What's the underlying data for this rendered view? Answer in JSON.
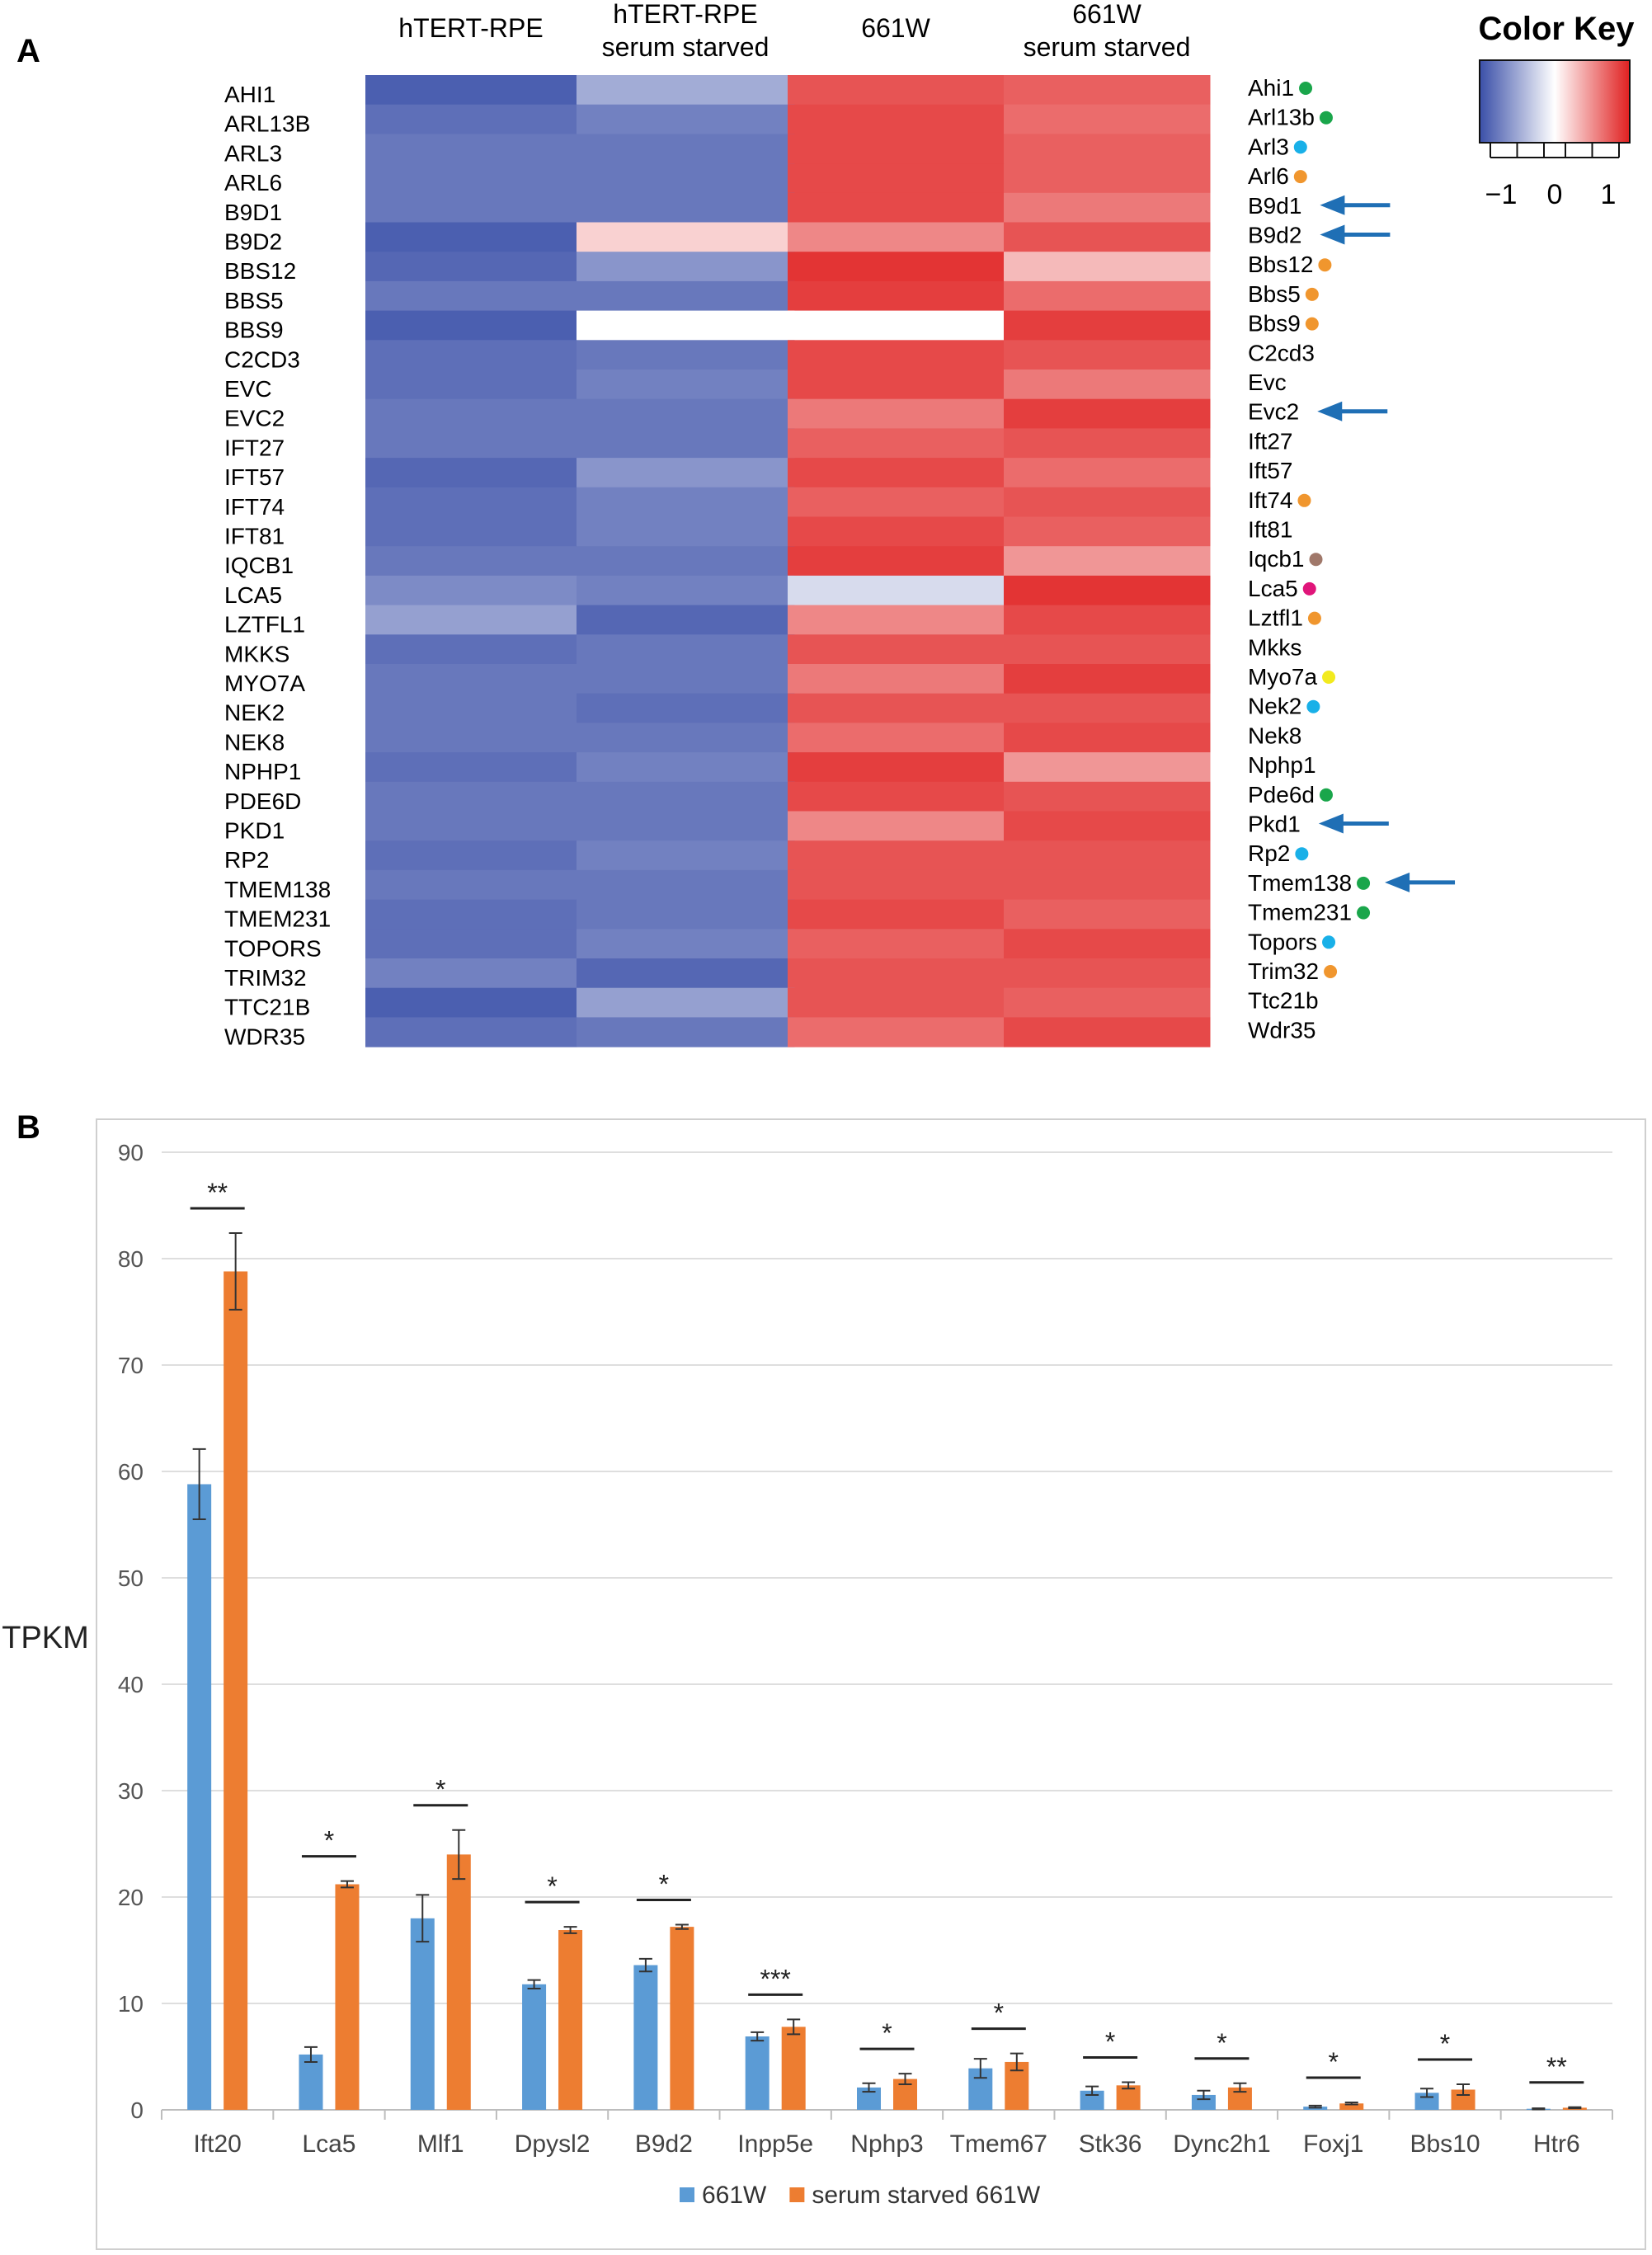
{
  "panel_labels": [
    "A",
    "B"
  ],
  "chart_data": [
    {
      "type": "heatmap",
      "title": "",
      "columns": [
        "hTERT-RPE",
        "hTERT-RPE serum starved",
        "661W",
        "661W serum starved"
      ],
      "column_label_lines": [
        [
          "hTERT-RPE"
        ],
        [
          "hTERT-RPE",
          "serum starved"
        ],
        [
          "661W"
        ],
        [
          "661W",
          "serum starved"
        ]
      ],
      "rows_human": [
        "AHI1",
        "ARL13B",
        "ARL3",
        "ARL6",
        "B9D1",
        "B9D2",
        "BBS12",
        "BBS5",
        "BBS9",
        "C2CD3",
        "EVC",
        "EVC2",
        "IFT27",
        "IFT57",
        "IFT74",
        "IFT81",
        "IQCB1",
        "LCA5",
        "LZTFL1",
        "MKKS",
        "MYO7A",
        "NEK2",
        "NEK8",
        "NPHP1",
        "PDE6D",
        "PKD1",
        "RP2",
        "TMEM138",
        "TMEM231",
        "TOPORS",
        "TRIM32",
        "TTC21B",
        "WDR35"
      ],
      "rows_mouse": [
        "Ahi1",
        "Arl13b",
        "Arl3",
        "Arl6",
        "B9d1",
        "B9d2",
        "Bbs12",
        "Bbs5",
        "Bbs9",
        "C2cd3",
        "Evc",
        "Evc2",
        "Ift27",
        "Ift57",
        "Ift74",
        "Ift81",
        "Iqcb1",
        "Lca5",
        "Lztfl1",
        "Mkks",
        "Myo7a",
        "Nek2",
        "Nek8",
        "Nphp1",
        "Pde6d",
        "Pkd1",
        "Rp2",
        "Tmem138",
        "Tmem231",
        "Topors",
        "Trim32",
        "Ttc21b",
        "Wdr35"
      ],
      "values": [
        [
          -1.2,
          -0.4,
          0.9,
          0.8
        ],
        [
          -1.0,
          -0.8,
          1.0,
          0.7
        ],
        [
          -0.9,
          -0.9,
          1.0,
          0.8
        ],
        [
          -0.9,
          -0.9,
          1.0,
          0.8
        ],
        [
          -0.9,
          -0.9,
          1.0,
          0.6
        ],
        [
          -1.2,
          0.1,
          0.5,
          0.9
        ],
        [
          -1.1,
          -0.6,
          1.2,
          0.2
        ],
        [
          -0.9,
          -0.9,
          1.1,
          0.7
        ],
        [
          -1.2,
          0.0,
          0.0,
          1.1
        ],
        [
          -1.0,
          -0.9,
          1.0,
          0.9
        ],
        [
          -1.0,
          -0.8,
          1.0,
          0.6
        ],
        [
          -0.9,
          -0.9,
          0.6,
          1.1
        ],
        [
          -0.9,
          -0.9,
          0.8,
          0.9
        ],
        [
          -1.1,
          -0.6,
          1.0,
          0.7
        ],
        [
          -1.0,
          -0.8,
          0.8,
          0.9
        ],
        [
          -1.0,
          -0.8,
          1.0,
          0.8
        ],
        [
          -0.9,
          -0.9,
          1.1,
          0.4
        ],
        [
          -0.7,
          -0.8,
          -0.1,
          1.2
        ],
        [
          -0.5,
          -1.1,
          0.5,
          1.0
        ],
        [
          -1.0,
          -0.9,
          0.9,
          0.9
        ],
        [
          -0.9,
          -0.9,
          0.6,
          1.1
        ],
        [
          -0.9,
          -1.0,
          0.9,
          0.9
        ],
        [
          -0.9,
          -0.9,
          0.7,
          1.0
        ],
        [
          -1.0,
          -0.8,
          1.1,
          0.4
        ],
        [
          -0.9,
          -0.9,
          1.0,
          0.9
        ],
        [
          -0.9,
          -0.9,
          0.5,
          1.0
        ],
        [
          -1.0,
          -0.8,
          0.9,
          0.9
        ],
        [
          -0.9,
          -0.9,
          0.9,
          0.9
        ],
        [
          -1.0,
          -0.9,
          1.0,
          0.8
        ],
        [
          -1.0,
          -0.8,
          0.8,
          1.0
        ],
        [
          -0.8,
          -1.1,
          0.9,
          0.9
        ],
        [
          -1.2,
          -0.5,
          0.9,
          0.8
        ],
        [
          -1.0,
          -0.9,
          0.7,
          1.0
        ]
      ],
      "dot_colors": [
        "#1aa64b",
        "#1aa64b",
        "#19b0e8",
        "#f0962e",
        null,
        null,
        "#f0962e",
        "#f0962e",
        "#f0962e",
        null,
        null,
        null,
        null,
        null,
        "#f0962e",
        null,
        "#a0786a",
        "#e0157a",
        "#f0962e",
        null,
        "#f2ea1e",
        "#19b0e8",
        null,
        null,
        "#1aa64b",
        null,
        "#19b0e8",
        "#1aa64b",
        "#1aa64b",
        "#19b0e8",
        "#f0962e",
        null,
        null
      ],
      "arrow_rows": [
        "B9d1",
        "B9d2",
        "Evc2",
        "Pkd1",
        "Tmem138"
      ],
      "arrow_color": "#1f6fb5",
      "color_key": {
        "title": "Color Key",
        "ticks": [
          "−1",
          "0",
          "1"
        ],
        "tick_values": [
          -1,
          0,
          1
        ],
        "range": [
          -1.4,
          1.4
        ],
        "low_color": "#3a4fa8",
        "mid_color": "#ffffff",
        "high_color": "#e02020"
      }
    },
    {
      "type": "bar",
      "title": "",
      "xlabel": "",
      "ylabel": "TPKM",
      "ylim": [
        0,
        90
      ],
      "yticks": [
        0,
        10,
        20,
        30,
        40,
        50,
        60,
        70,
        80,
        90
      ],
      "categories": [
        "Ift20",
        "Lca5",
        "Mlf1",
        "Dpysl2",
        "B9d2",
        "Inpp5e",
        "Nphp3",
        "Tmem67",
        "Stk36",
        "Dync2h1",
        "Foxj1",
        "Bbs10",
        "Htr6"
      ],
      "series": [
        {
          "name": "661W",
          "color": "#5b9bd5",
          "values": [
            58.8,
            5.2,
            18.0,
            11.8,
            13.6,
            6.9,
            2.1,
            3.9,
            1.8,
            1.4,
            0.3,
            1.6,
            0.1
          ],
          "errors": [
            3.3,
            0.7,
            2.2,
            0.4,
            0.6,
            0.4,
            0.4,
            0.9,
            0.4,
            0.4,
            0.1,
            0.4,
            0.05
          ]
        },
        {
          "name": "serum starved 661W",
          "color": "#ed7d31",
          "values": [
            78.8,
            21.2,
            24.0,
            16.9,
            17.2,
            7.8,
            2.9,
            4.5,
            2.3,
            2.1,
            0.6,
            1.9,
            0.2
          ],
          "errors": [
            3.6,
            0.3,
            2.3,
            0.3,
            0.2,
            0.7,
            0.5,
            0.8,
            0.3,
            0.4,
            0.1,
            0.5,
            0.05
          ]
        }
      ],
      "significance": [
        "**",
        "*",
        "*",
        "*",
        "*",
        "***",
        "*",
        "*",
        "*",
        "*",
        "*",
        "*",
        "**"
      ],
      "legend": [
        "661W",
        "serum starved 661W"
      ],
      "legend_position": "bottom",
      "grid": true
    }
  ]
}
